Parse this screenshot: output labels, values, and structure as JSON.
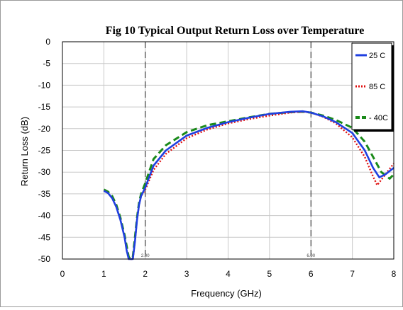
{
  "chart_data": {
    "type": "line",
    "title": "Fig 10 Typical Output Return Loss over Temperature",
    "xlabel": "Frequency (GHz)",
    "ylabel": "Return Loss (dB)",
    "xlim": [
      0,
      8
    ],
    "ylim": [
      -50,
      0
    ],
    "xticks": [
      "0",
      "1",
      "2",
      "3",
      "4",
      "5",
      "6",
      "7",
      "8"
    ],
    "yticks": [
      "0",
      "-5",
      "-10",
      "-15",
      "-20",
      "-25",
      "-30",
      "-35",
      "-40",
      "-45",
      "-50"
    ],
    "grid": true,
    "legend_position": "top-right",
    "markers": [
      {
        "x": 2,
        "label": "2.00"
      },
      {
        "x": 6,
        "label": "6.00"
      }
    ],
    "series": [
      {
        "name": "25 C",
        "color": "#1f3fe0",
        "style": "solid",
        "x": [
          1.0,
          1.1,
          1.2,
          1.3,
          1.4,
          1.5,
          1.55,
          1.6,
          1.65,
          1.7,
          1.75,
          1.8,
          1.85,
          1.9,
          2.0,
          2.2,
          2.5,
          3.0,
          3.5,
          4.0,
          4.5,
          5.0,
          5.5,
          5.8,
          6.0,
          6.3,
          6.6,
          7.0,
          7.3,
          7.5,
          7.65,
          7.8,
          8.0
        ],
        "y": [
          -34.3,
          -34.8,
          -36.0,
          -38.0,
          -41.0,
          -45.0,
          -48.0,
          -50.5,
          -51.0,
          -50.5,
          -46.0,
          -41.0,
          -37.5,
          -35.5,
          -33.5,
          -28.5,
          -25.0,
          -21.6,
          -19.8,
          -18.5,
          -17.5,
          -16.6,
          -16.1,
          -16.0,
          -16.3,
          -17.2,
          -18.5,
          -21.0,
          -25.0,
          -29.0,
          -31.2,
          -30.5,
          -29.0
        ]
      },
      {
        "name": "85 C",
        "color": "#e01010",
        "style": "dotted",
        "x": [
          1.0,
          1.1,
          1.2,
          1.3,
          1.4,
          1.5,
          1.55,
          1.6,
          1.65,
          1.7,
          1.75,
          1.8,
          1.85,
          1.9,
          2.0,
          2.2,
          2.5,
          3.0,
          3.5,
          4.0,
          4.5,
          5.0,
          5.5,
          5.8,
          6.0,
          6.3,
          6.6,
          7.0,
          7.3,
          7.5,
          7.6,
          7.8,
          8.0
        ],
        "y": [
          -34.3,
          -34.8,
          -36.0,
          -38.0,
          -41.0,
          -45.0,
          -48.0,
          -50.5,
          -51.0,
          -50.5,
          -46.0,
          -41.0,
          -37.5,
          -35.5,
          -34.0,
          -29.5,
          -25.8,
          -22.2,
          -20.2,
          -18.8,
          -17.8,
          -17.0,
          -16.3,
          -16.1,
          -16.3,
          -17.3,
          -18.8,
          -22.0,
          -26.5,
          -31.0,
          -33.0,
          -30.5,
          -28.0
        ]
      },
      {
        "name": "- 40C",
        "color": "#1a8a1a",
        "style": "dashed",
        "x": [
          1.0,
          1.1,
          1.2,
          1.3,
          1.4,
          1.5,
          1.6,
          1.65,
          1.7,
          1.75,
          1.8,
          1.85,
          1.9,
          2.0,
          2.2,
          2.5,
          3.0,
          3.5,
          4.0,
          4.5,
          5.0,
          5.5,
          5.8,
          6.0,
          6.3,
          6.6,
          7.0,
          7.3,
          7.5,
          7.7,
          7.9,
          8.0
        ],
        "y": [
          -34.0,
          -34.5,
          -35.5,
          -37.5,
          -40.5,
          -44.5,
          -49.5,
          -51.0,
          -49.5,
          -45.0,
          -40.5,
          -37.0,
          -35.0,
          -32.5,
          -27.0,
          -23.8,
          -20.8,
          -19.2,
          -18.3,
          -17.4,
          -16.6,
          -16.2,
          -16.1,
          -16.3,
          -17.0,
          -18.0,
          -19.8,
          -23.0,
          -26.5,
          -30.0,
          -31.5,
          -30.5
        ]
      }
    ]
  }
}
